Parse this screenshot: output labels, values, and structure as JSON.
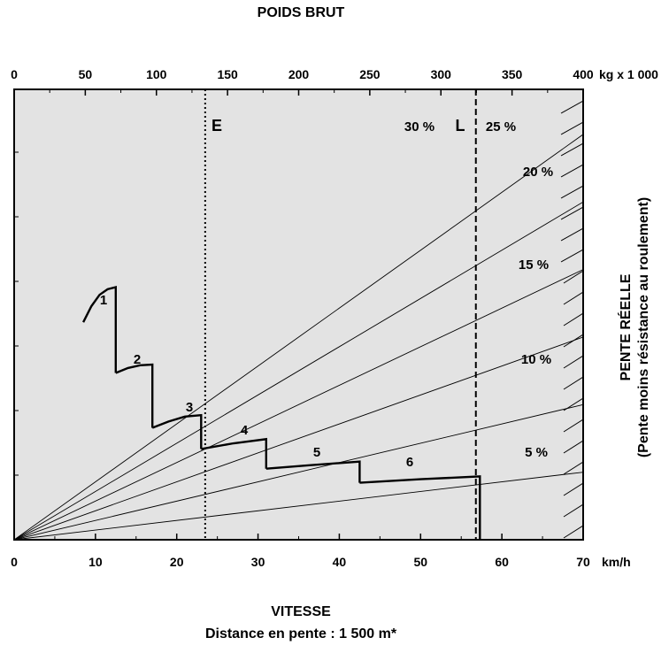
{
  "chart_data": {
    "type": "line",
    "title": "POIDS BRUT",
    "xlabel": "VITESSE",
    "subtitle": "Distance en pente : 1 500 m*",
    "ylabel": "PENTE RÉELLE",
    "ylabel_sub": "(Pente moins résistance au roulement)",
    "x_unit": "km/h",
    "top_unit": "kg x 1 000",
    "xlim": [
      0,
      70
    ],
    "top_lim": [
      0,
      400
    ],
    "x_ticks": [
      "0",
      "10",
      "20",
      "30",
      "40",
      "50",
      "60",
      "70"
    ],
    "top_ticks": [
      "0",
      "50",
      "100",
      "150",
      "200",
      "250",
      "300",
      "350",
      "400"
    ],
    "grid": false,
    "grade_lines": [
      {
        "label": "5 %",
        "end_y": 96
      },
      {
        "label": "10 %",
        "end_y": 192
      },
      {
        "label": "15 %",
        "end_y": 288
      },
      {
        "label": "20 %",
        "end_y": 384
      },
      {
        "label": "25 %",
        "end_y": 480
      },
      {
        "label": "30 %",
        "end_y": 576
      }
    ],
    "limit_lines": [
      {
        "label": "E",
        "x": 23.5,
        "style": "dotted"
      },
      {
        "label": "L",
        "x": 56.8,
        "style": "dashed"
      }
    ],
    "gears": [
      {
        "name": "1",
        "points": [
          [
            8.5,
            309
          ],
          [
            9.5,
            332
          ],
          [
            10.5,
            348
          ],
          [
            11.5,
            356
          ],
          [
            12.5,
            359
          ],
          [
            12.5,
            237
          ]
        ]
      },
      {
        "name": "2",
        "points": [
          [
            12.5,
            237
          ],
          [
            14,
            244
          ],
          [
            15.5,
            248
          ],
          [
            17,
            249
          ],
          [
            17,
            159
          ]
        ]
      },
      {
        "name": "3",
        "points": [
          [
            17,
            159
          ],
          [
            19,
            168
          ],
          [
            21,
            175
          ],
          [
            23,
            177
          ],
          [
            23,
            129
          ]
        ]
      },
      {
        "name": "4",
        "points": [
          [
            23,
            129
          ],
          [
            27,
            137
          ],
          [
            31,
            143
          ],
          [
            31,
            101
          ]
        ]
      },
      {
        "name": "5",
        "points": [
          [
            31,
            101
          ],
          [
            36.5,
            106
          ],
          [
            42.5,
            111
          ],
          [
            42.5,
            81
          ]
        ]
      },
      {
        "name": "6",
        "points": [
          [
            42.5,
            81
          ],
          [
            50,
            86
          ],
          [
            57.3,
            90
          ],
          [
            57.3,
            0
          ]
        ]
      }
    ],
    "colors": {
      "plot_bg": "#e3e3e3",
      "lines": "#000000"
    }
  }
}
